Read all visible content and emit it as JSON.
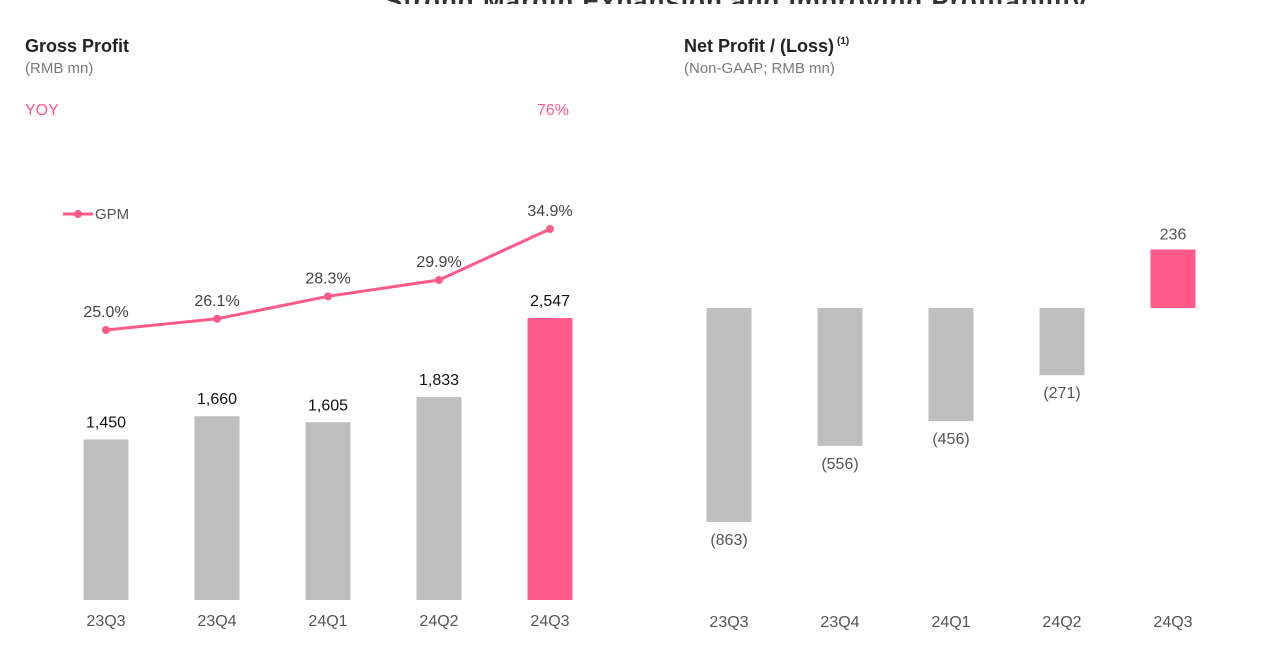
{
  "colors": {
    "accent": "#ff5a8a",
    "bar_gray": "#bfbfbf",
    "text_dark": "#222222",
    "text_gray": "#555555"
  },
  "left": {
    "title": "Gross Profit",
    "subtitle": "(RMB mn)",
    "yoy_label": "YOY",
    "yoy_value": "76%",
    "legend": "GPM"
  },
  "right": {
    "title": "Net Profit / (Loss)",
    "footnote": "(1)",
    "subtitle": "(Non-GAAP; RMB mn)"
  },
  "chart_data": [
    {
      "type": "bar",
      "title": "Gross Profit",
      "subtitle": "(RMB mn)",
      "categories": [
        "23Q3",
        "23Q4",
        "24Q1",
        "24Q2",
        "24Q3"
      ],
      "values": [
        1450,
        1660,
        1605,
        1833,
        2547
      ],
      "value_labels": [
        "1,450",
        "1,660",
        "1,605",
        "1,833",
        "2,547"
      ],
      "highlight_index": 4,
      "ylim": [
        0,
        2547
      ],
      "secondary": {
        "type": "line",
        "name": "GPM",
        "values": [
          25.0,
          26.1,
          28.3,
          29.9,
          34.9
        ],
        "value_labels": [
          "25.0%",
          "26.1%",
          "28.3%",
          "29.9%",
          "34.9%"
        ],
        "ylim": [
          25.0,
          34.9
        ]
      }
    },
    {
      "type": "bar",
      "title": "Net Profit / (Loss)",
      "subtitle": "(Non-GAAP; RMB mn)",
      "categories": [
        "23Q3",
        "23Q4",
        "24Q1",
        "24Q2",
        "24Q3"
      ],
      "values": [
        -863,
        -556,
        -456,
        -271,
        236
      ],
      "value_labels": [
        "(863)",
        "(556)",
        "(456)",
        "(271)",
        "236"
      ],
      "highlight_index": 4,
      "ylim": [
        -863,
        236
      ]
    }
  ]
}
